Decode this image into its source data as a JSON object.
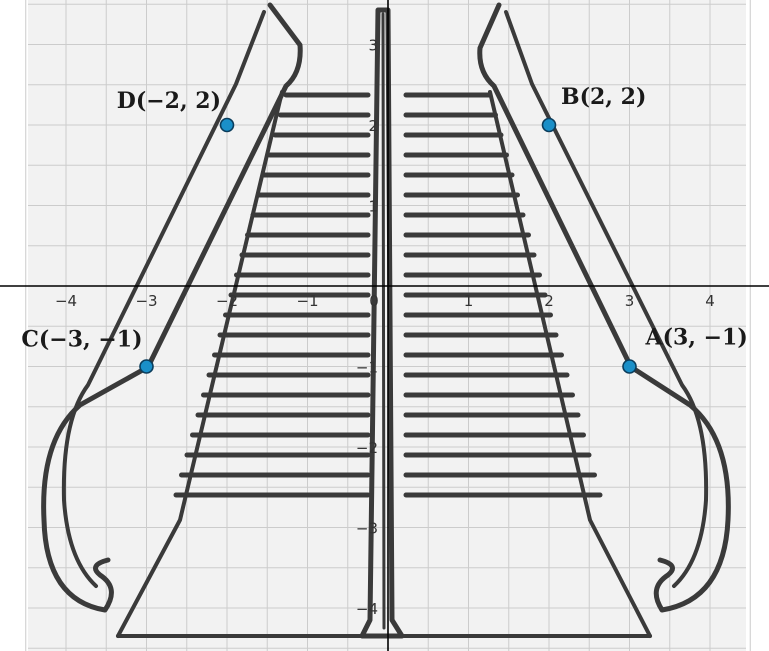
{
  "axes": {
    "x_ticks": [
      {
        "value": -4,
        "label": "−4"
      },
      {
        "value": -3,
        "label": "−3"
      },
      {
        "value": -2,
        "label": "−2"
      },
      {
        "value": -1,
        "label": "−1"
      },
      {
        "value": 0,
        "label": "0"
      },
      {
        "value": 1,
        "label": "1"
      },
      {
        "value": 2,
        "label": "2"
      },
      {
        "value": 3,
        "label": "3"
      },
      {
        "value": 4,
        "label": "4"
      }
    ],
    "y_ticks": [
      {
        "value": 3,
        "label": "3"
      },
      {
        "value": 2,
        "label": "2"
      },
      {
        "value": 1,
        "label": "1"
      },
      {
        "value": -1,
        "label": "−1"
      },
      {
        "value": -2,
        "label": "−2"
      },
      {
        "value": -3,
        "label": "−3"
      },
      {
        "value": -4,
        "label": "−4"
      }
    ],
    "x_range": [
      -4.8,
      4.8
    ],
    "y_range": [
      -4.5,
      3.5
    ],
    "grid_step": 0.5,
    "grid": true
  },
  "points": [
    {
      "id": "A",
      "label": "A(3, −1)",
      "x": 3,
      "y": -1
    },
    {
      "id": "B",
      "label": "B(2, 2)",
      "x": 2,
      "y": 2
    },
    {
      "id": "C",
      "label": "C(−3, −1)",
      "x": -3,
      "y": -1
    },
    {
      "id": "D",
      "label": "D(−2, 2)",
      "x": -2,
      "y": 2
    }
  ],
  "colors": {
    "point_fill": "#1a8fc8",
    "point_stroke": "#0b3d5c",
    "grid": "#cccccc",
    "axis": "#000000",
    "escalator": "#3a3a3a",
    "panel": "#f2f2f2"
  }
}
